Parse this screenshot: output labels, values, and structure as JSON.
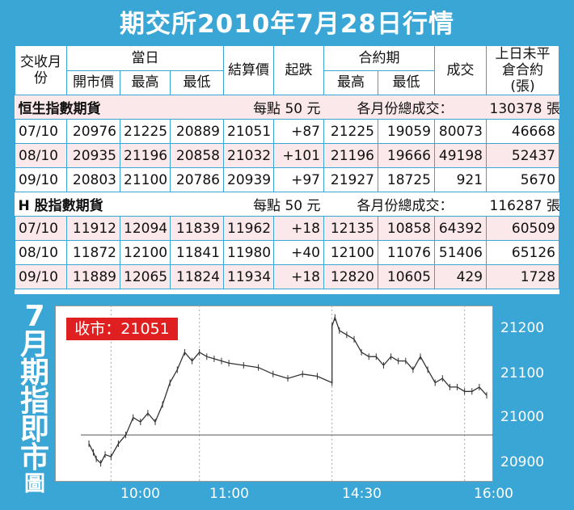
{
  "title": "期交所2010年7月28日行情",
  "header": {
    "contract_month": "交收月份",
    "day_group": "當日",
    "open": "開市價",
    "high": "最高",
    "low": "最低",
    "settle": "結算價",
    "change": "起跌",
    "contract_group": "合約期",
    "c_high": "最高",
    "c_low": "最低",
    "volume": "成交",
    "prev_oi": "上日未平倉合約(張)"
  },
  "sections": [
    {
      "name": "恒生指數期貨",
      "per_point": "每點 50 元",
      "total_label": "各月份總成交：",
      "total": "130378 張",
      "rows": [
        {
          "month": "07/10",
          "open": "20976",
          "high": "21225",
          "low": "20889",
          "settle": "21051",
          "change": "+87",
          "c_high": "21225",
          "c_low": "19059",
          "volume": "80073",
          "oi": "46668"
        },
        {
          "month": "08/10",
          "open": "20935",
          "high": "21196",
          "low": "20858",
          "settle": "21032",
          "change": "+101",
          "c_high": "21196",
          "c_low": "19666",
          "volume": "49198",
          "oi": "52437"
        },
        {
          "month": "09/10",
          "open": "20803",
          "high": "21100",
          "low": "20786",
          "settle": "20939",
          "change": "+97",
          "c_high": "21927",
          "c_low": "18725",
          "volume": "921",
          "oi": "5670"
        }
      ]
    },
    {
      "name": "H 股指數期貨",
      "per_point": "每點 50 元",
      "total_label": "各月份總成交：",
      "total": "116287 張",
      "rows": [
        {
          "month": "07/10",
          "open": "11912",
          "high": "12094",
          "low": "11839",
          "settle": "11962",
          "change": "+18",
          "c_high": "12135",
          "c_low": "10858",
          "volume": "64392",
          "oi": "60509"
        },
        {
          "month": "08/10",
          "open": "11872",
          "high": "12100",
          "low": "11841",
          "settle": "11980",
          "change": "+40",
          "c_high": "12100",
          "c_low": "11076",
          "volume": "51406",
          "oi": "65126"
        },
        {
          "month": "09/10",
          "open": "11889",
          "high": "12065",
          "low": "11824",
          "settle": "11934",
          "change": "+18",
          "c_high": "12820",
          "c_low": "10605",
          "volume": "429",
          "oi": "1728"
        }
      ]
    }
  ],
  "chart_label": [
    "7",
    "月",
    "期",
    "指",
    "即",
    "市",
    "圖"
  ],
  "close_text": "收市：21051",
  "chart_data": {
    "type": "line",
    "title": "",
    "xlabel": "",
    "ylabel": "",
    "x_ticks": [
      "10:00",
      "11:00",
      "14:30",
      "16:00"
    ],
    "y_ticks": [
      21200,
      21100,
      21000,
      20900
    ],
    "ylim": [
      20860,
      21250
    ],
    "reference_level": 20960,
    "x": [
      "09:45",
      "09:48",
      "09:50",
      "09:53",
      "09:56",
      "10:00",
      "10:05",
      "10:10",
      "10:15",
      "10:20",
      "10:25",
      "10:30",
      "10:35",
      "10:40",
      "10:45",
      "10:50",
      "10:55",
      "11:00",
      "11:05",
      "11:10",
      "11:15",
      "11:20",
      "11:30",
      "11:40",
      "11:50",
      "12:00",
      "12:10",
      "12:20",
      "12:30",
      "14:30",
      "14:32",
      "14:35",
      "14:40",
      "14:45",
      "14:50",
      "14:55",
      "15:00",
      "15:05",
      "15:10",
      "15:15",
      "15:20",
      "15:25",
      "15:30",
      "15:35",
      "15:40",
      "15:45",
      "15:50",
      "15:55",
      "16:00",
      "16:05",
      "16:10",
      "16:15"
    ],
    "values": [
      20940,
      20920,
      20905,
      20895,
      20915,
      20910,
      20940,
      20960,
      21000,
      20990,
      21010,
      20990,
      21030,
      21080,
      21110,
      21150,
      21130,
      21150,
      21140,
      21135,
      21130,
      21125,
      21120,
      21115,
      21100,
      21090,
      21100,
      21095,
      21080,
      21210,
      21230,
      21200,
      21190,
      21180,
      21150,
      21140,
      21140,
      21120,
      21140,
      21130,
      21130,
      21110,
      21140,
      21110,
      21080,
      21090,
      21070,
      21070,
      21060,
      21060,
      21070,
      21051
    ]
  },
  "colors": {
    "background": "#3aa6d6",
    "close_box": "#e02020",
    "alt_row": "#fbe8ea"
  }
}
